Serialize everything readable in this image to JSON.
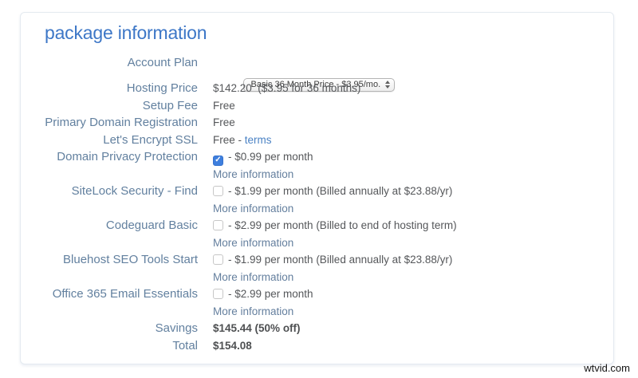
{
  "page": {
    "title": "package information",
    "watermark": "wtvid.com"
  },
  "colors": {
    "title_blue": "#3d77c7",
    "label_blue_gray": "#62809f",
    "link_blue": "#4a82c4",
    "checkbox_checked_blue": "#3e7fde",
    "value_gray": "#55575a"
  },
  "icons": {
    "select_arrows": "up-down-arrows",
    "checkbox_checked": "checkmark"
  },
  "rows": {
    "account_plan": {
      "label": "Account Plan",
      "value": "Basic 36 Month Price - $3.95/mo."
    },
    "hosting_price": {
      "label": "Hosting Price",
      "value": "$142.20  ($3.95 for 36 months)"
    },
    "setup_fee": {
      "label": "Setup Fee",
      "value": "Free"
    },
    "primary_domain": {
      "label": "Primary Domain Registration",
      "value": "Free"
    },
    "ssl": {
      "label": "Let's Encrypt SSL",
      "value_prefix": "Free - ",
      "link": "terms"
    },
    "domain_privacy": {
      "label": "Domain Privacy Protection",
      "checked": true,
      "value": "- $0.99 per month",
      "more": "More information"
    },
    "sitelock": {
      "label": "SiteLock Security - Find",
      "checked": false,
      "value": "- $1.99 per month (Billed annually at $23.88/yr)",
      "more": "More information"
    },
    "codeguard": {
      "label": "Codeguard Basic",
      "checked": false,
      "value": "- $2.99 per month (Billed to end of hosting term)",
      "more": "More information"
    },
    "seo_tools": {
      "label": "Bluehost SEO Tools Start",
      "checked": false,
      "value": "- $1.99 per month (Billed annually at $23.88/yr)",
      "more": "More information"
    },
    "office365": {
      "label": "Office 365 Email Essentials",
      "checked": false,
      "value": "- $2.99 per month",
      "more": "More information"
    },
    "savings": {
      "label": "Savings",
      "value": "$145.44 (50% off)"
    },
    "total": {
      "label": "Total",
      "value": "$154.08"
    }
  }
}
